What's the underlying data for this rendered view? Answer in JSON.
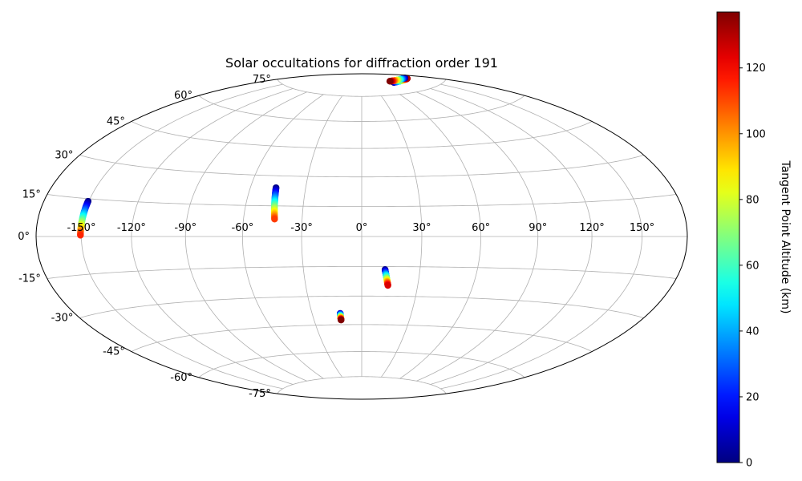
{
  "chart_data": {
    "type": "scatter",
    "projection": "hammer",
    "title": "Solar occultations for diffraction order 191",
    "grid": true,
    "lon_ticks": [
      -150,
      -120,
      -90,
      -60,
      -30,
      0,
      30,
      60,
      90,
      120,
      150
    ],
    "lon_tick_labels": [
      "-150°",
      "-120°",
      "-90°",
      "-60°",
      "-30°",
      "0°",
      "30°",
      "60°",
      "90°",
      "120°",
      "150°"
    ],
    "lat_ticks": [
      75,
      60,
      45,
      30,
      15,
      0,
      -15,
      -30,
      -45,
      -60,
      -75
    ],
    "lat_tick_labels": [
      "75°",
      "60°",
      "45°",
      "30°",
      "15°",
      "0°",
      "-15°",
      "-30°",
      "-45°",
      "-60°",
      "-75°"
    ],
    "colorbar": {
      "label": "Tangent Point Altitude (km)",
      "range": [
        0,
        137
      ],
      "ticks": [
        0,
        20,
        40,
        60,
        80,
        100,
        120
      ],
      "tick_labels": [
        "0",
        "20",
        "40",
        "60",
        "80",
        "100",
        "120"
      ],
      "colormap": "jet"
    },
    "series": [
      {
        "lon_start": -150.5,
        "lat_start": 14.0,
        "lon_end": -150.6,
        "lat_end": 0.5,
        "alt_start": 0,
        "alt_end": 115
      },
      {
        "lon_start": -46.0,
        "lat_start": 24.0,
        "lon_end": -44.0,
        "lat_end": 8.5,
        "alt_start": 0,
        "alt_end": 112
      },
      {
        "lon_start": 12.0,
        "lat_start": -16.5,
        "lon_end": 14.0,
        "lat_end": -24.5,
        "alt_start": 0,
        "alt_end": 125
      },
      {
        "lon_start": -13.0,
        "lat_start": -39.0,
        "lon_end": -13.0,
        "lat_end": -42.5,
        "alt_start": 5,
        "alt_end": 137
      },
      {
        "lon_start": 95.0,
        "lat_start": 82.0,
        "lon_end": 150.0,
        "lat_end": 81.5,
        "alt_start": 0,
        "alt_end": 130
      },
      {
        "lon_start": 152.0,
        "lat_start": 82.0,
        "lon_end": 95.0,
        "lat_end": 83.0,
        "alt_start": 0,
        "alt_end": 137
      }
    ]
  }
}
